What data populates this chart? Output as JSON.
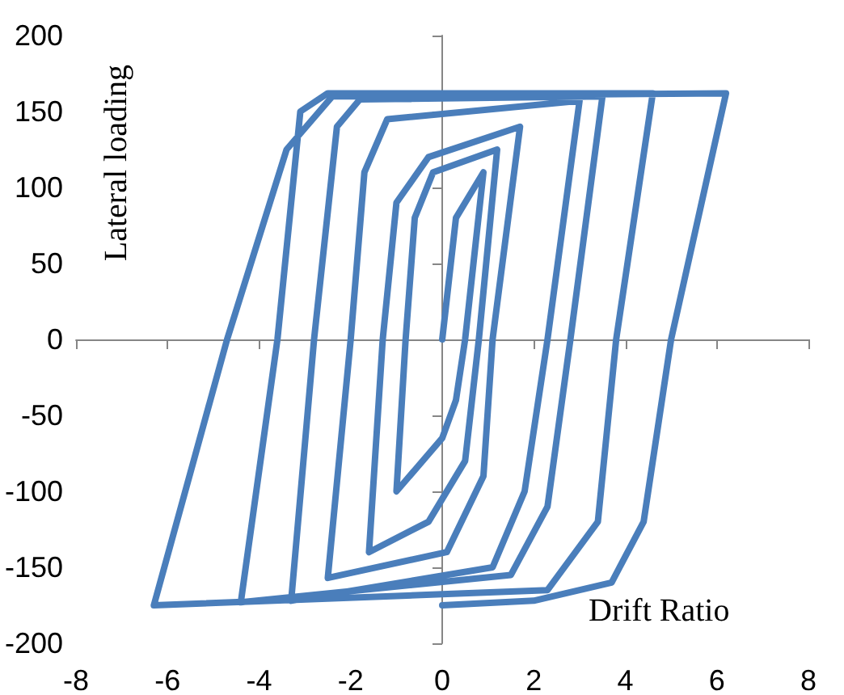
{
  "chart_data": {
    "type": "line",
    "xlabel": "Drift Ratio",
    "ylabel": "Lateral loading",
    "xlim": [
      -8,
      8
    ],
    "xticks": [
      -8,
      -6,
      -4,
      -2,
      0,
      2,
      4,
      6,
      8
    ],
    "ylim": [
      -200,
      200
    ],
    "yticks": [
      -200,
      -150,
      -100,
      -50,
      0,
      50,
      100,
      150,
      200
    ],
    "marker": "none",
    "line_style": "solid",
    "series": [
      {
        "color": "#4a7ebb",
        "x": [
          0,
          0.3,
          0.9,
          0.5,
          0.3,
          0,
          -1.0,
          -0.8,
          -0.6,
          -0.2,
          1.2,
          0.8,
          0.5,
          -0.3,
          -1.6,
          -1.3,
          -1.0,
          -0.3,
          1.7,
          1.1,
          0.9,
          0.1,
          -2.5,
          -2.0,
          -1.7,
          -1.2,
          3.0,
          2.3,
          1.8,
          1.1,
          -3.3,
          -2.8,
          -2.3,
          -1.8,
          3.5,
          2.8,
          2.3,
          1.5,
          -4.4,
          -3.6,
          -3.1,
          -2.5,
          4.6,
          3.8,
          3.4,
          2.3,
          -6.3,
          -4.7,
          -3.4,
          -2.4,
          6.2,
          5.0,
          4.4,
          3.7,
          2.0,
          0
        ],
        "values": [
          0,
          80,
          110,
          0,
          -40,
          -65,
          -100,
          0,
          80,
          110,
          125,
          0,
          -80,
          -120,
          -140,
          0,
          90,
          120,
          140,
          0,
          -90,
          -140,
          -157,
          0,
          110,
          145,
          157,
          0,
          -100,
          -150,
          -172,
          0,
          140,
          158,
          160,
          0,
          -110,
          -155,
          -173,
          0,
          150,
          162,
          162,
          0,
          -120,
          -165,
          -175,
          0,
          125,
          160,
          162,
          0,
          -120,
          -160,
          -172,
          -175
        ]
      }
    ]
  }
}
